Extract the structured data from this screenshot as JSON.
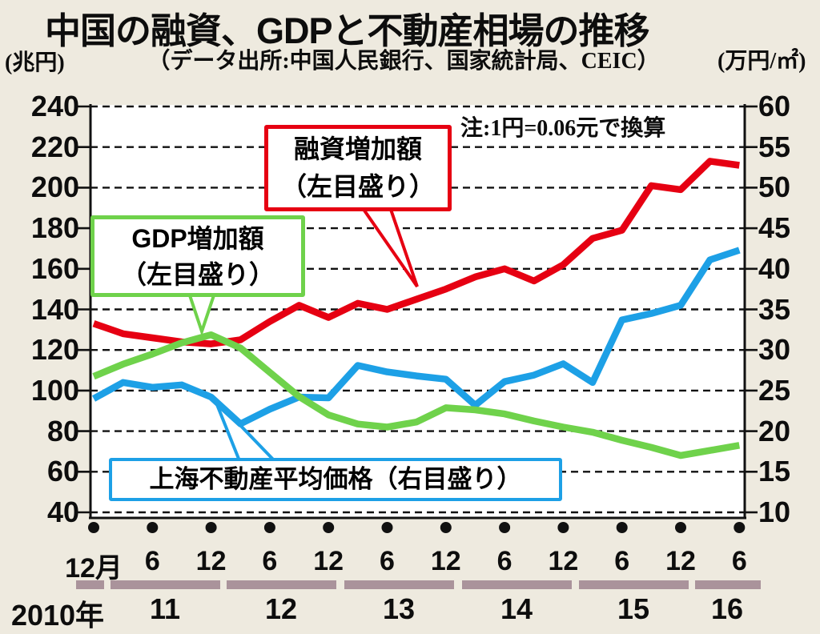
{
  "header": {
    "title": "中国の融資、GDPと不動産相場の推移",
    "left_unit": "(兆円)",
    "source": "（データ出所:中国人民銀行、国家統計局、CEIC）",
    "right_unit": "(万円/㎡)",
    "note": "注:1円=0.06元で換算"
  },
  "callouts": {
    "financing": {
      "line1": "融資増加額",
      "line2": "（左目盛り）"
    },
    "gdp": {
      "line1": "GDP増加額",
      "line2": "（左目盛り）"
    },
    "shanghai": {
      "text": "上海不動産平均価格（右目盛り）"
    }
  },
  "colors": {
    "red": "#e60012",
    "green": "#6fd24b",
    "blue": "#1da0e6",
    "year_bar": "#aa939b",
    "background": "#eeeadf",
    "plot_background": "#ffffff"
  },
  "x_axis": {
    "month_ticks": [
      "12月",
      "6",
      "12",
      "6",
      "12",
      "6",
      "12",
      "6",
      "12",
      "6",
      "12",
      "6"
    ],
    "year_labels": [
      "2010年",
      "11",
      "12",
      "13",
      "14",
      "15",
      "16"
    ]
  },
  "chart_data": {
    "type": "line",
    "title": "中国の融資、GDPと不動産相場の推移",
    "x_labels": [
      "2010/12",
      "2011/3",
      "2011/6",
      "2011/9",
      "2011/12",
      "2012/3",
      "2012/6",
      "2012/9",
      "2012/12",
      "2013/3",
      "2013/6",
      "2013/9",
      "2013/12",
      "2014/3",
      "2014/6",
      "2014/9",
      "2014/12",
      "2015/3",
      "2015/6",
      "2015/9",
      "2015/12",
      "2016/3",
      "2016/6"
    ],
    "series": [
      {
        "name": "融資増加額（左目盛り）",
        "axis": "left",
        "color": "#e60012",
        "values": [
          133,
          128,
          126,
          124,
          123,
          125,
          134,
          142,
          136,
          143,
          140,
          145,
          150,
          156,
          160,
          154,
          162,
          175,
          179,
          201,
          199,
          213,
          211
        ]
      },
      {
        "name": "GDP増加額（左目盛り）",
        "axis": "left",
        "color": "#6fd24b",
        "values": [
          107,
          113,
          118,
          123.5,
          127.5,
          121,
          109,
          97,
          88,
          83.5,
          82,
          84.5,
          91.5,
          90.5,
          88.5,
          85,
          82,
          79.5,
          75.5,
          72,
          68,
          70.5,
          73
        ]
      },
      {
        "name": "上海不動産平均価格（右目盛り）",
        "axis": "right",
        "color": "#1da0e6",
        "values": [
          24,
          26,
          25.4,
          25.7,
          24.2,
          20.9,
          22.7,
          24.2,
          24.1,
          28.1,
          27.3,
          26.8,
          26.4,
          23.2,
          26.1,
          26.9,
          28.3,
          26,
          33.7,
          34.5,
          35.5,
          41.1,
          42.3
        ]
      }
    ],
    "left_axis": {
      "label": "(兆円)",
      "min": 40,
      "max": 240,
      "step": 20,
      "ticks": [
        240,
        220,
        200,
        180,
        160,
        140,
        120,
        100,
        80,
        60,
        40
      ]
    },
    "right_axis": {
      "label": "(万円/㎡)",
      "min": 10,
      "max": 60,
      "step": 5,
      "ticks": [
        60,
        55,
        50,
        45,
        40,
        35,
        30,
        25,
        20,
        15,
        10
      ]
    },
    "grid": "dashed horizontal",
    "legend_position": "in-plot callout boxes"
  }
}
